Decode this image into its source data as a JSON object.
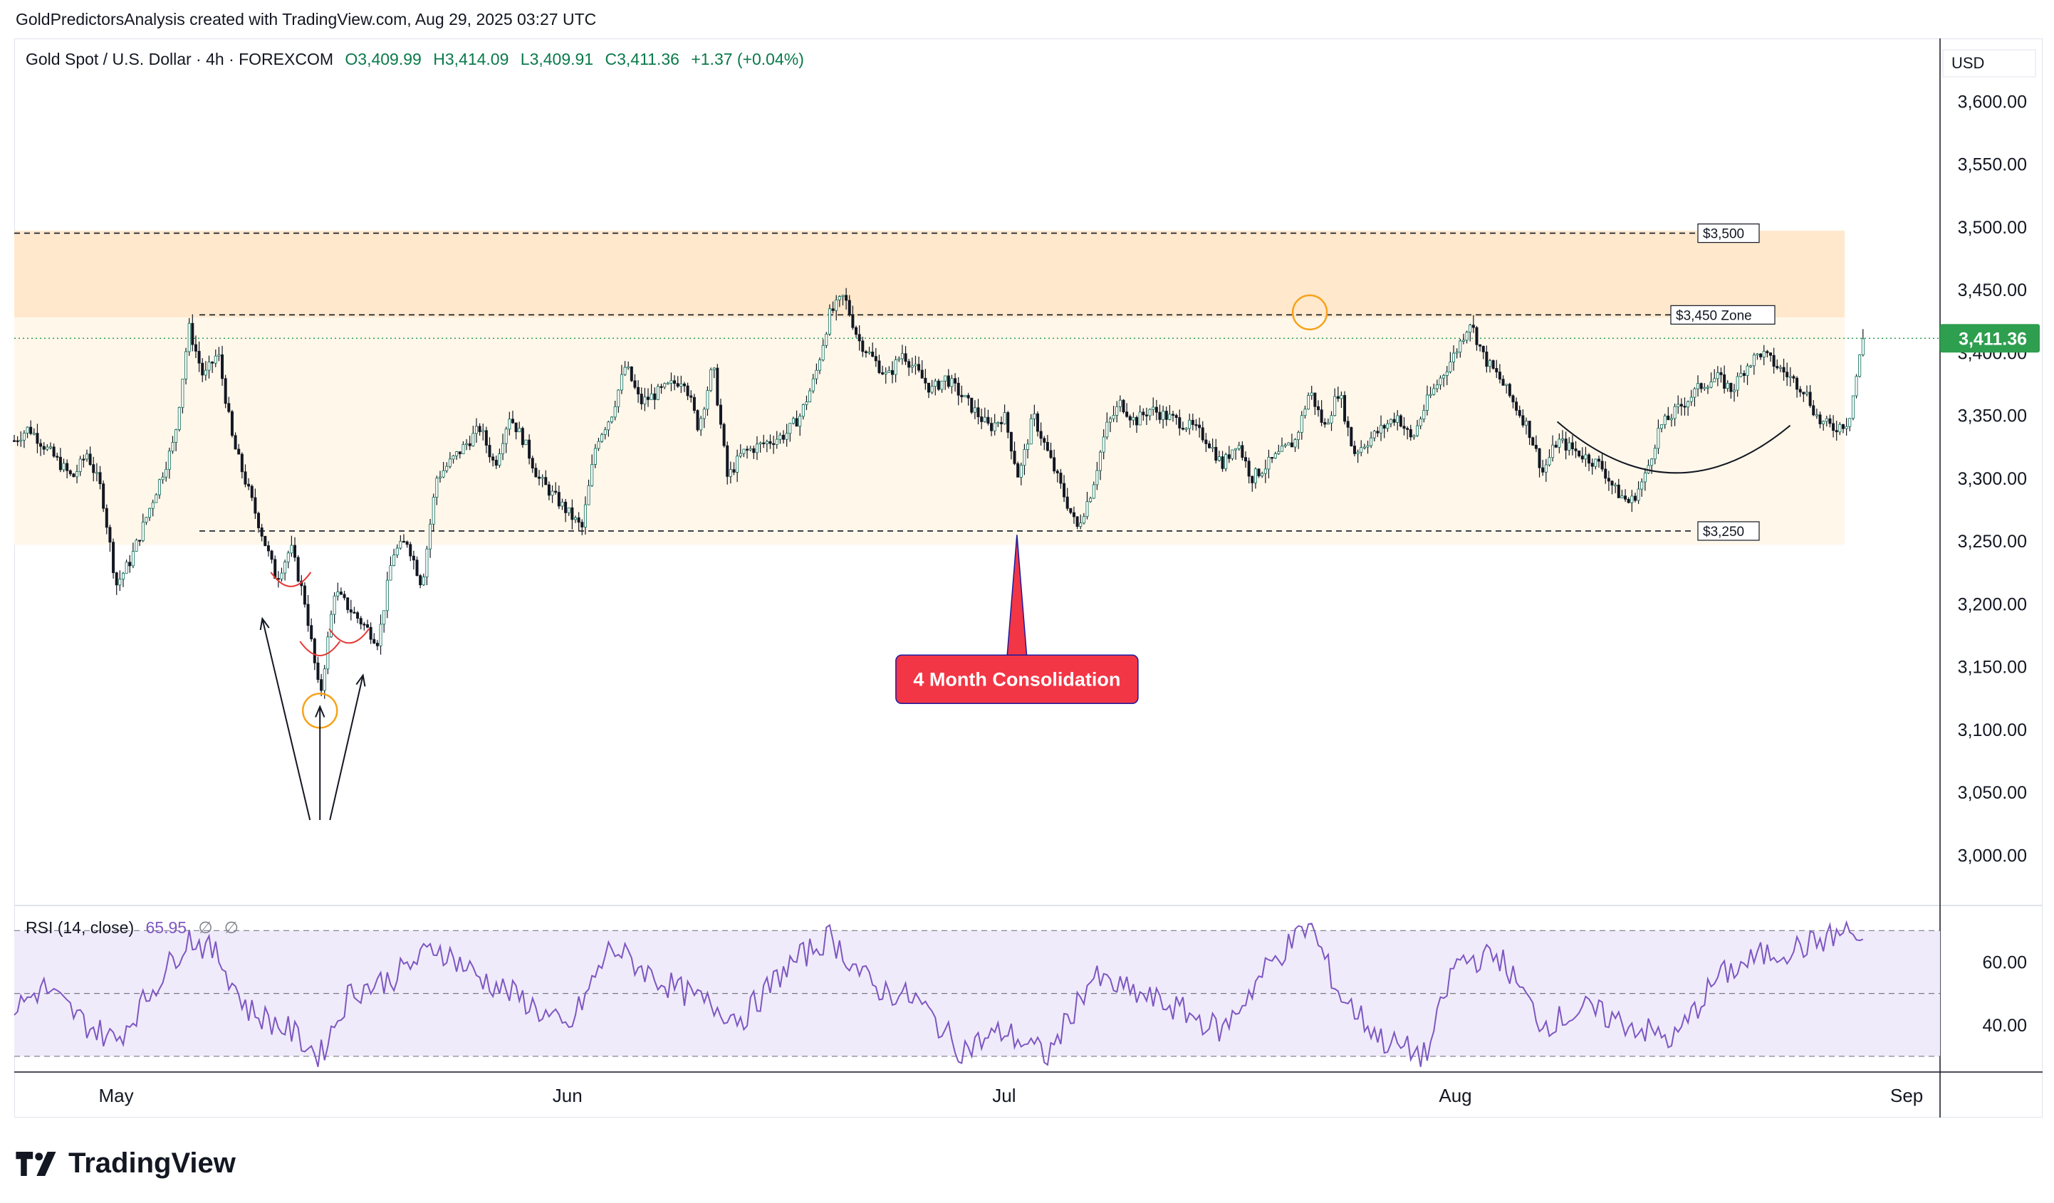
{
  "attribution": "GoldPredictorsAnalysis created with TradingView.com, Aug 29, 2025 03:27 UTC",
  "branding": {
    "logo_icon": "tradingview-logo-icon",
    "name": "TradingView"
  },
  "colors": {
    "up": "#089981",
    "down": "#f23645",
    "rsi": "#7e57c2",
    "zone_upper": "#ffe8cc",
    "zone_lower": "#fff7ea",
    "price_tag": "#2e9e4f",
    "callout": "#f23645",
    "marker": "#f7a21b"
  },
  "chart_data": {
    "type": "candlestick",
    "symbol_header": {
      "title": "Gold Spot / U.S. Dollar · 4h · FOREXCOM",
      "open_label": "O",
      "open": "3,409.99",
      "high_label": "H",
      "high": "3,414.09",
      "low_label": "L",
      "low": "3,409.91",
      "close_label": "C",
      "close": "3,411.36",
      "change": "+1.37 (+0.04%)"
    },
    "currency": "USD",
    "y_axis": {
      "range": [
        2960,
        3650
      ],
      "ticks": [
        "3,600.00",
        "3,550.00",
        "3,500.00",
        "3,450.00",
        "3,400.00",
        "3,350.00",
        "3,300.00",
        "3,250.00",
        "3,200.00",
        "3,150.00",
        "3,100.00",
        "3,050.00",
        "3,000.00"
      ],
      "tick_values": [
        3600,
        3550,
        3500,
        3450,
        3400,
        3350,
        3300,
        3250,
        3200,
        3150,
        3100,
        3050,
        3000
      ]
    },
    "x_axis": {
      "start": "2025-04-24",
      "end": "2025-09-03",
      "ticks": [
        {
          "label": "May",
          "date": "2025-05-01"
        },
        {
          "label": "Jun",
          "date": "2025-06-01"
        },
        {
          "label": "Jul",
          "date": "2025-07-01"
        },
        {
          "label": "Aug",
          "date": "2025-08-01"
        },
        {
          "label": "Sep",
          "date": "2025-09-01"
        }
      ]
    },
    "last_price": {
      "value": 3411.36,
      "label": "3,411.36"
    },
    "price_path": [
      {
        "date": "2025-04-24",
        "close": 3330
      },
      {
        "date": "2025-04-25",
        "close": 3340
      },
      {
        "date": "2025-04-28",
        "close": 3300
      },
      {
        "date": "2025-04-29",
        "close": 3320
      },
      {
        "date": "2025-04-30",
        "close": 3290
      },
      {
        "date": "2025-05-01",
        "close": 3215
      },
      {
        "date": "2025-05-02",
        "close": 3235
      },
      {
        "date": "2025-05-05",
        "close": 3330
      },
      {
        "date": "2025-05-06",
        "close": 3420
      },
      {
        "date": "2025-05-07",
        "close": 3380
      },
      {
        "date": "2025-05-08",
        "close": 3400
      },
      {
        "date": "2025-05-09",
        "close": 3330
      },
      {
        "date": "2025-05-12",
        "close": 3220
      },
      {
        "date": "2025-05-13",
        "close": 3245
      },
      {
        "date": "2025-05-14",
        "close": 3200
      },
      {
        "date": "2025-05-15",
        "close": 3125
      },
      {
        "date": "2025-05-16",
        "close": 3210
      },
      {
        "date": "2025-05-19",
        "close": 3170
      },
      {
        "date": "2025-05-20",
        "close": 3240
      },
      {
        "date": "2025-05-21",
        "close": 3250
      },
      {
        "date": "2025-05-22",
        "close": 3215
      },
      {
        "date": "2025-05-23",
        "close": 3300
      },
      {
        "date": "2025-05-26",
        "close": 3340
      },
      {
        "date": "2025-05-27",
        "close": 3310
      },
      {
        "date": "2025-05-28",
        "close": 3350
      },
      {
        "date": "2025-05-29",
        "close": 3330
      },
      {
        "date": "2025-05-30",
        "close": 3300
      },
      {
        "date": "2025-06-02",
        "close": 3260
      },
      {
        "date": "2025-06-03",
        "close": 3330
      },
      {
        "date": "2025-06-04",
        "close": 3350
      },
      {
        "date": "2025-06-05",
        "close": 3390
      },
      {
        "date": "2025-06-06",
        "close": 3360
      },
      {
        "date": "2025-06-09",
        "close": 3380
      },
      {
        "date": "2025-06-10",
        "close": 3340
      },
      {
        "date": "2025-06-11",
        "close": 3390
      },
      {
        "date": "2025-06-12",
        "close": 3300
      },
      {
        "date": "2025-06-13",
        "close": 3320
      },
      {
        "date": "2025-06-16",
        "close": 3335
      },
      {
        "date": "2025-06-17",
        "close": 3350
      },
      {
        "date": "2025-06-18",
        "close": 3380
      },
      {
        "date": "2025-06-19",
        "close": 3430
      },
      {
        "date": "2025-06-20",
        "close": 3445
      },
      {
        "date": "2025-06-21",
        "close": 3410
      },
      {
        "date": "2025-06-23",
        "close": 3380
      },
      {
        "date": "2025-06-24",
        "close": 3400
      },
      {
        "date": "2025-06-25",
        "close": 3385
      },
      {
        "date": "2025-06-26",
        "close": 3370
      },
      {
        "date": "2025-06-27",
        "close": 3380
      },
      {
        "date": "2025-06-30",
        "close": 3340
      },
      {
        "date": "2025-07-01",
        "close": 3350
      },
      {
        "date": "2025-07-02",
        "close": 3300
      },
      {
        "date": "2025-07-03",
        "close": 3350
      },
      {
        "date": "2025-07-04",
        "close": 3320
      },
      {
        "date": "2025-07-06",
        "close": 3260
      },
      {
        "date": "2025-07-07",
        "close": 3290
      },
      {
        "date": "2025-07-08",
        "close": 3340
      },
      {
        "date": "2025-07-09",
        "close": 3360
      },
      {
        "date": "2025-07-10",
        "close": 3345
      },
      {
        "date": "2025-07-11",
        "close": 3355
      },
      {
        "date": "2025-07-14",
        "close": 3340
      },
      {
        "date": "2025-07-15",
        "close": 3330
      },
      {
        "date": "2025-07-16",
        "close": 3310
      },
      {
        "date": "2025-07-17",
        "close": 3330
      },
      {
        "date": "2025-07-18",
        "close": 3300
      },
      {
        "date": "2025-07-21",
        "close": 3330
      },
      {
        "date": "2025-07-22",
        "close": 3370
      },
      {
        "date": "2025-07-23",
        "close": 3340
      },
      {
        "date": "2025-07-24",
        "close": 3370
      },
      {
        "date": "2025-07-25",
        "close": 3320
      },
      {
        "date": "2025-07-28",
        "close": 3350
      },
      {
        "date": "2025-07-29",
        "close": 3330
      },
      {
        "date": "2025-07-30",
        "close": 3360
      },
      {
        "date": "2025-08-01",
        "close": 3400
      },
      {
        "date": "2025-08-02",
        "close": 3425
      },
      {
        "date": "2025-08-03",
        "close": 3395
      },
      {
        "date": "2025-08-04",
        "close": 3380
      },
      {
        "date": "2025-08-05",
        "close": 3360
      },
      {
        "date": "2025-08-06",
        "close": 3340
      },
      {
        "date": "2025-08-07",
        "close": 3305
      },
      {
        "date": "2025-08-08",
        "close": 3330
      },
      {
        "date": "2025-08-11",
        "close": 3310
      },
      {
        "date": "2025-08-12",
        "close": 3290
      },
      {
        "date": "2025-08-13",
        "close": 3280
      },
      {
        "date": "2025-08-14",
        "close": 3300
      },
      {
        "date": "2025-08-15",
        "close": 3340
      },
      {
        "date": "2025-08-18",
        "close": 3375
      },
      {
        "date": "2025-08-19",
        "close": 3380
      },
      {
        "date": "2025-08-20",
        "close": 3370
      },
      {
        "date": "2025-08-21",
        "close": 3390
      },
      {
        "date": "2025-08-22",
        "close": 3400
      },
      {
        "date": "2025-08-25",
        "close": 3370
      },
      {
        "date": "2025-08-26",
        "close": 3345
      },
      {
        "date": "2025-08-27",
        "close": 3340
      },
      {
        "date": "2025-08-28",
        "close": 3345
      },
      {
        "date": "2025-08-29",
        "close": 3411
      }
    ],
    "levels": [
      {
        "value": 3495,
        "label": "$3,500",
        "style": "dashed"
      },
      {
        "value": 3430,
        "label": "$3,450 Zone",
        "style": "dashed"
      },
      {
        "value": 3258,
        "label": "$3,250",
        "style": "dashed"
      }
    ],
    "zones": [
      {
        "from": 3428,
        "to": 3497,
        "shade": "upper"
      },
      {
        "from": 3247,
        "to": 3428,
        "shade": "lower"
      }
    ],
    "annotations": {
      "callout": {
        "text": "4 Month Consolidation",
        "date": "2025-07-01",
        "price": 3140,
        "arrow_to_price": 3255
      },
      "circles": [
        {
          "date": "2025-05-15",
          "price": 3115
        },
        {
          "date": "2025-07-22",
          "price": 3432
        }
      ],
      "arrows_origin": {
        "date": "2025-05-15",
        "price": 3028
      },
      "arrow_targets": [
        {
          "date": "2025-05-13",
          "price": 3195
        },
        {
          "date": "2025-05-15",
          "price": 3125
        },
        {
          "date": "2025-05-16",
          "price": 3150
        }
      ]
    },
    "rsi": {
      "legend": "RSI (14, close)",
      "value": "65.95",
      "empty_1": "∅",
      "empty_2": "∅",
      "range": [
        25,
        78
      ],
      "upper_band": 70,
      "mid_band": 50,
      "lower_band": 30,
      "ticks": [
        "60.00",
        "40.00"
      ],
      "tick_values": [
        60,
        40
      ],
      "path": [
        {
          "date": "2025-04-24",
          "value": 45
        },
        {
          "date": "2025-04-26",
          "value": 52
        },
        {
          "date": "2025-04-29",
          "value": 40
        },
        {
          "date": "2025-05-01",
          "value": 35
        },
        {
          "date": "2025-05-03",
          "value": 48
        },
        {
          "date": "2025-05-06",
          "value": 68
        },
        {
          "date": "2025-05-08",
          "value": 62
        },
        {
          "date": "2025-05-10",
          "value": 45
        },
        {
          "date": "2025-05-13",
          "value": 38
        },
        {
          "date": "2025-05-15",
          "value": 30
        },
        {
          "date": "2025-05-17",
          "value": 50
        },
        {
          "date": "2025-05-20",
          "value": 55
        },
        {
          "date": "2025-05-23",
          "value": 65
        },
        {
          "date": "2025-05-26",
          "value": 55
        },
        {
          "date": "2025-05-29",
          "value": 48
        },
        {
          "date": "2025-06-01",
          "value": 38
        },
        {
          "date": "2025-06-04",
          "value": 65
        },
        {
          "date": "2025-06-07",
          "value": 55
        },
        {
          "date": "2025-06-10",
          "value": 48
        },
        {
          "date": "2025-06-13",
          "value": 42
        },
        {
          "date": "2025-06-16",
          "value": 58
        },
        {
          "date": "2025-06-19",
          "value": 68
        },
        {
          "date": "2025-06-22",
          "value": 52
        },
        {
          "date": "2025-06-25",
          "value": 48
        },
        {
          "date": "2025-06-28",
          "value": 32
        },
        {
          "date": "2025-07-01",
          "value": 38
        },
        {
          "date": "2025-07-04",
          "value": 30
        },
        {
          "date": "2025-07-07",
          "value": 55
        },
        {
          "date": "2025-07-10",
          "value": 50
        },
        {
          "date": "2025-07-13",
          "value": 45
        },
        {
          "date": "2025-07-16",
          "value": 38
        },
        {
          "date": "2025-07-19",
          "value": 58
        },
        {
          "date": "2025-07-22",
          "value": 72
        },
        {
          "date": "2025-07-24",
          "value": 50
        },
        {
          "date": "2025-07-27",
          "value": 35
        },
        {
          "date": "2025-07-30",
          "value": 30
        },
        {
          "date": "2025-08-01",
          "value": 60
        },
        {
          "date": "2025-08-04",
          "value": 62
        },
        {
          "date": "2025-08-07",
          "value": 40
        },
        {
          "date": "2025-08-10",
          "value": 45
        },
        {
          "date": "2025-08-13",
          "value": 40
        },
        {
          "date": "2025-08-16",
          "value": 35
        },
        {
          "date": "2025-08-19",
          "value": 55
        },
        {
          "date": "2025-08-22",
          "value": 62
        },
        {
          "date": "2025-08-25",
          "value": 65
        },
        {
          "date": "2025-08-28",
          "value": 70
        },
        {
          "date": "2025-08-29",
          "value": 65.95
        }
      ]
    }
  }
}
